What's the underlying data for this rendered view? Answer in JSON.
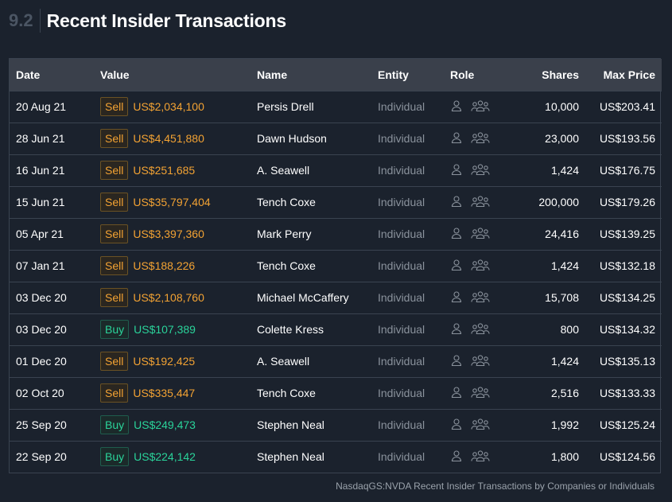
{
  "section": {
    "number": "9.2",
    "title": "Recent Insider Transactions"
  },
  "table": {
    "headers": {
      "date": "Date",
      "value": "Value",
      "name": "Name",
      "entity": "Entity",
      "role": "Role",
      "shares": "Shares",
      "max_price": "Max Price"
    },
    "rows": [
      {
        "date": "20 Aug 21",
        "type": "Sell",
        "value": "US$2,034,100",
        "name": "Persis Drell",
        "entity": "Individual",
        "shares": "10,000",
        "max_price": "US$203.41"
      },
      {
        "date": "28 Jun 21",
        "type": "Sell",
        "value": "US$4,451,880",
        "name": "Dawn Hudson",
        "entity": "Individual",
        "shares": "23,000",
        "max_price": "US$193.56"
      },
      {
        "date": "16 Jun 21",
        "type": "Sell",
        "value": "US$251,685",
        "name": "A. Seawell",
        "entity": "Individual",
        "shares": "1,424",
        "max_price": "US$176.75"
      },
      {
        "date": "15 Jun 21",
        "type": "Sell",
        "value": "US$35,797,404",
        "name": "Tench Coxe",
        "entity": "Individual",
        "shares": "200,000",
        "max_price": "US$179.26"
      },
      {
        "date": "05 Apr 21",
        "type": "Sell",
        "value": "US$3,397,360",
        "name": "Mark Perry",
        "entity": "Individual",
        "shares": "24,416",
        "max_price": "US$139.25"
      },
      {
        "date": "07 Jan 21",
        "type": "Sell",
        "value": "US$188,226",
        "name": "Tench Coxe",
        "entity": "Individual",
        "shares": "1,424",
        "max_price": "US$132.18"
      },
      {
        "date": "03 Dec 20",
        "type": "Sell",
        "value": "US$2,108,760",
        "name": "Michael McCaffery",
        "entity": "Individual",
        "shares": "15,708",
        "max_price": "US$134.25"
      },
      {
        "date": "03 Dec 20",
        "type": "Buy",
        "value": "US$107,389",
        "name": "Colette Kress",
        "entity": "Individual",
        "shares": "800",
        "max_price": "US$134.32"
      },
      {
        "date": "01 Dec 20",
        "type": "Sell",
        "value": "US$192,425",
        "name": "A. Seawell",
        "entity": "Individual",
        "shares": "1,424",
        "max_price": "US$135.13"
      },
      {
        "date": "02 Oct 20",
        "type": "Sell",
        "value": "US$335,447",
        "name": "Tench Coxe",
        "entity": "Individual",
        "shares": "2,516",
        "max_price": "US$133.33"
      },
      {
        "date": "25 Sep 20",
        "type": "Buy",
        "value": "US$249,473",
        "name": "Stephen Neal",
        "entity": "Individual",
        "shares": "1,992",
        "max_price": "US$125.24"
      },
      {
        "date": "22 Sep 20",
        "type": "Buy",
        "value": "US$224,142",
        "name": "Stephen Neal",
        "entity": "Individual",
        "shares": "1,800",
        "max_price": "US$124.56"
      }
    ]
  },
  "role_icons": [
    "person-icon",
    "group-icon"
  ],
  "footnote": "NasdaqGS:NVDA Recent Insider Transactions by Companies or Individuals",
  "colors": {
    "sell": "#f2a233",
    "buy": "#2ad39a",
    "background": "#1b222d",
    "header_row": "#3a404b"
  }
}
